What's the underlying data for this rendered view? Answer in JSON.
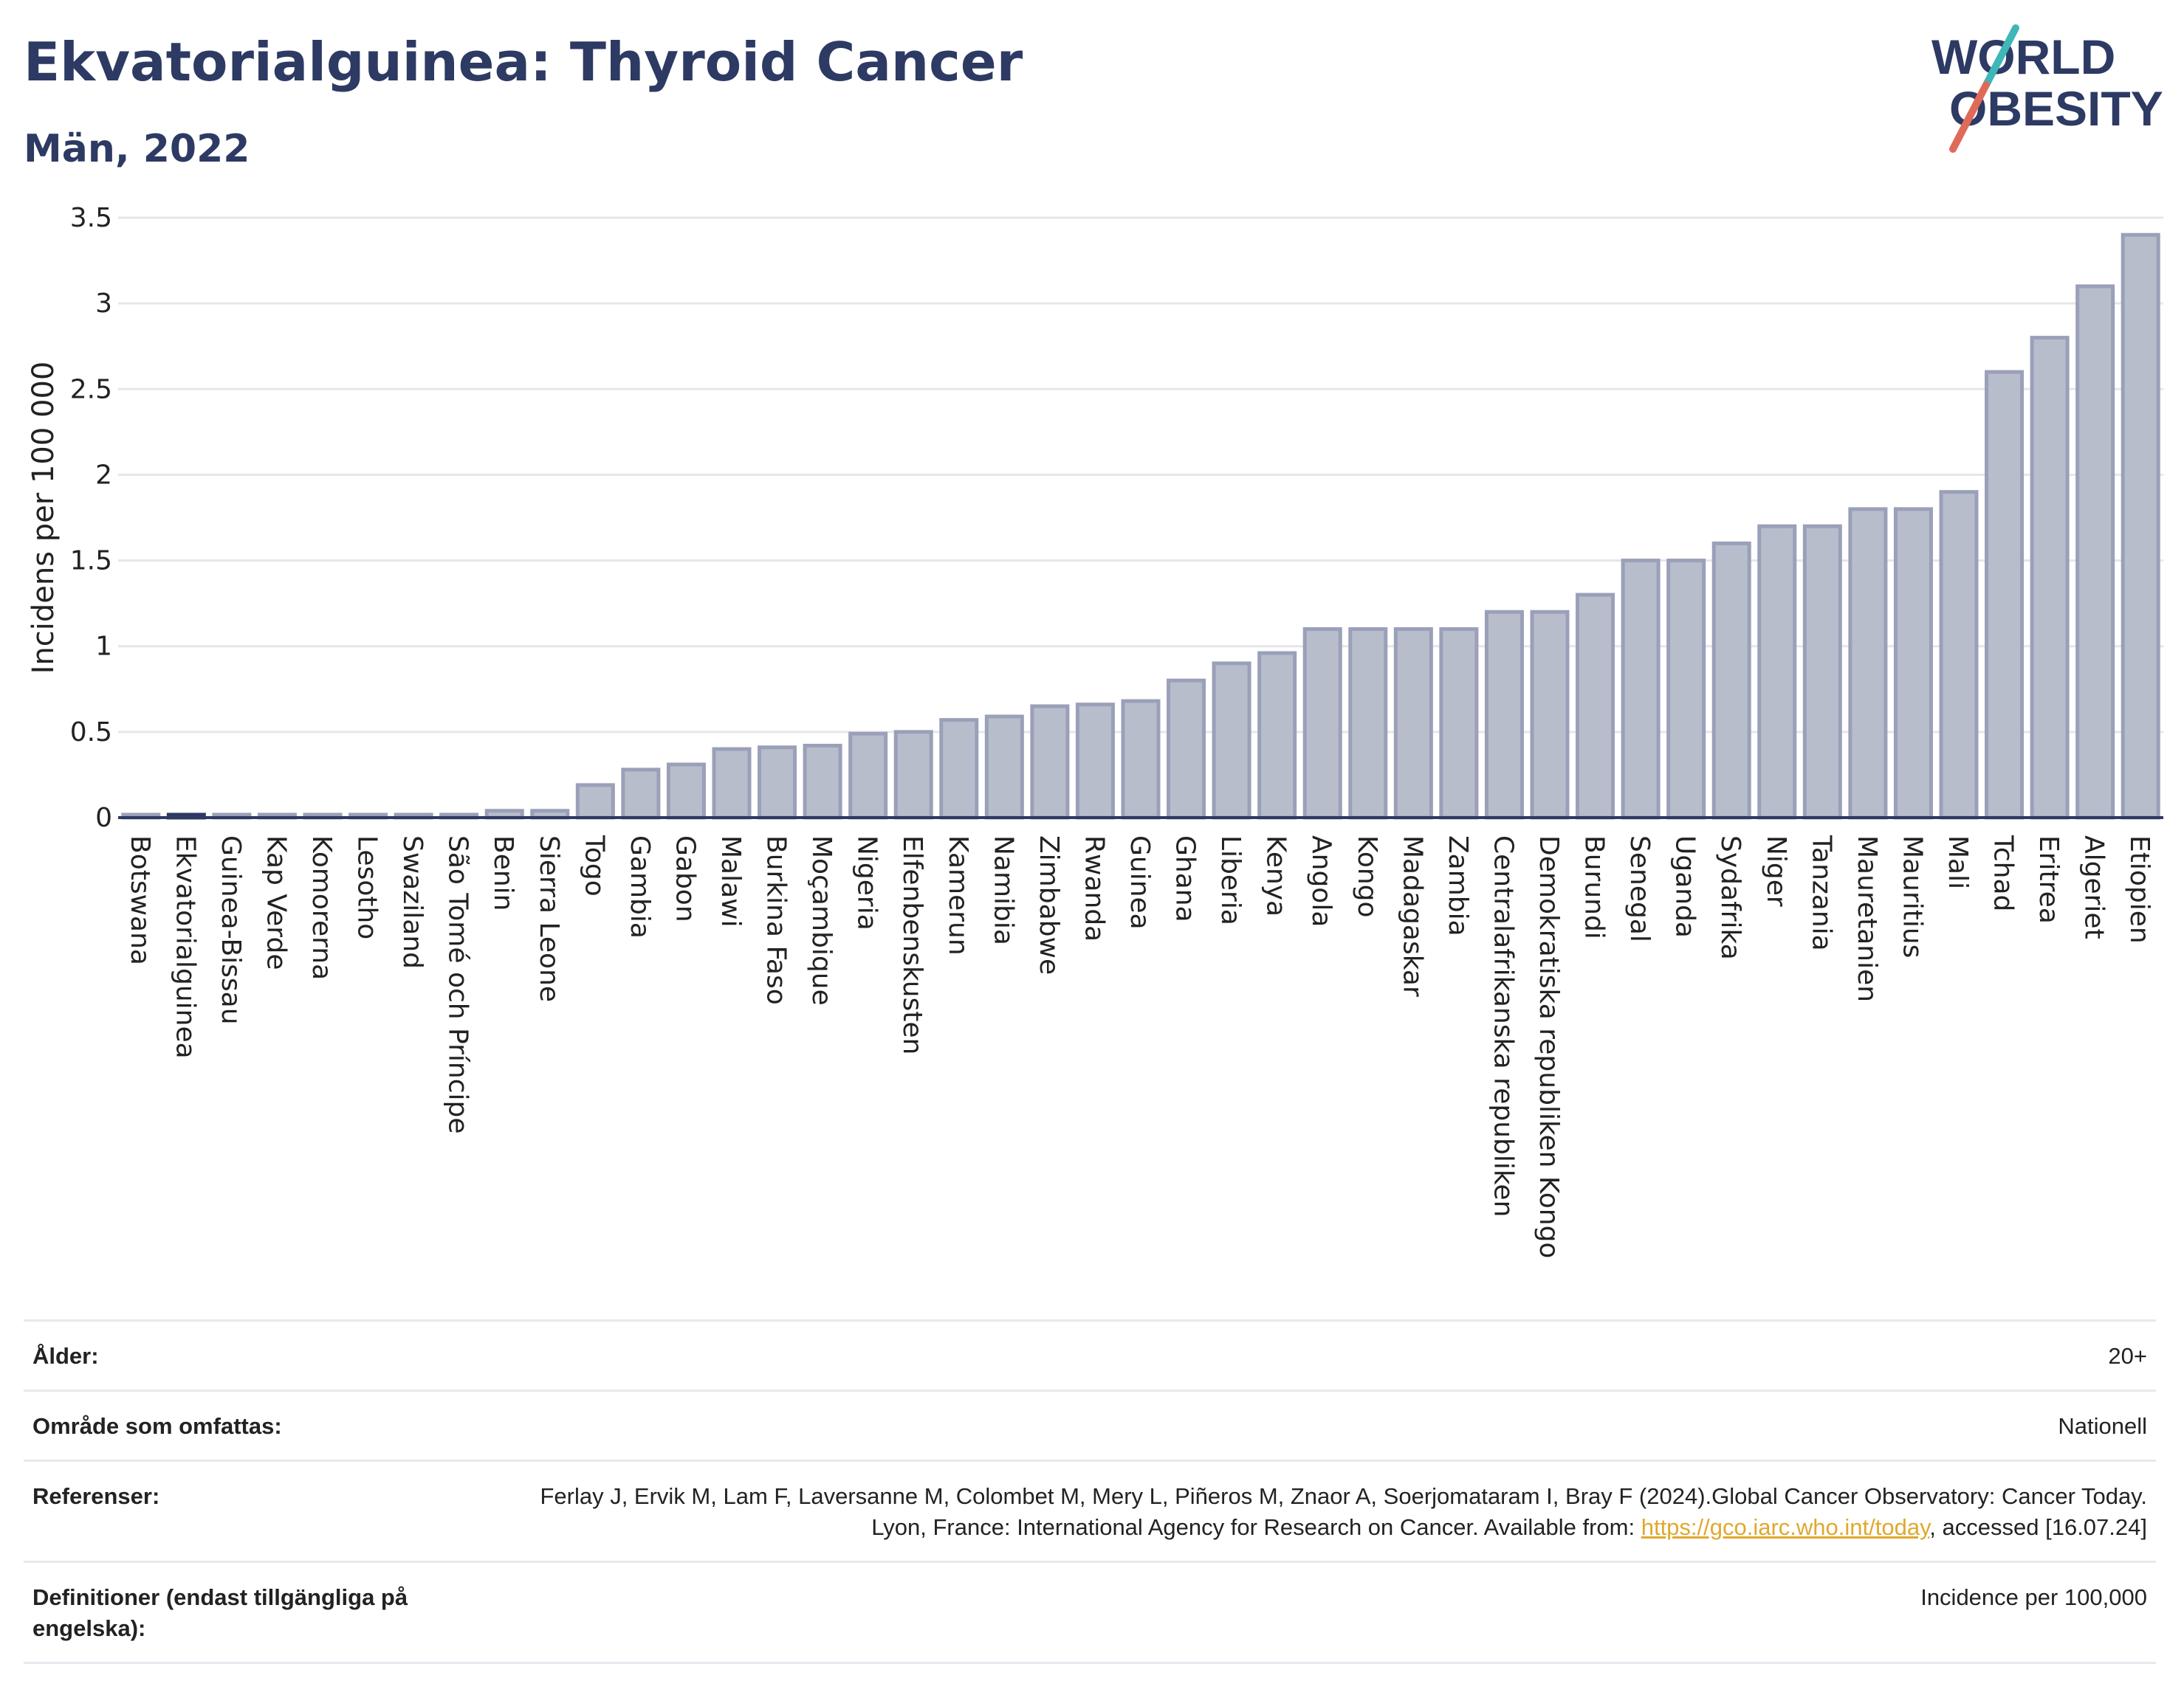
{
  "header": {
    "title": "Ekvatorialguinea: Thyroid Cancer",
    "subtitle": "Män, 2022"
  },
  "logo": {
    "line1": "WORLD",
    "line2": "OBESITY",
    "accent_color": "#e06a5a",
    "accent_color2": "#3fb6b8",
    "text_color": "#2d3a63"
  },
  "chart_data": {
    "type": "bar",
    "ylabel": "Incidens per 100 000",
    "ylim": [
      0,
      3.5
    ],
    "yticks": [
      0,
      0.5,
      1,
      1.5,
      2,
      2.5,
      3,
      3.5
    ],
    "ytick_labels": [
      "0",
      "0.5",
      "1",
      "1.5",
      "2",
      "2.5",
      "3",
      "3.5"
    ],
    "grid": true,
    "highlight": "Ekvatorialguinea",
    "bar_color": "#b8bdcc",
    "bar_border_color": "#9aa0b8",
    "highlight_color": "#2d3a63",
    "categories": [
      "Botswana",
      "Ekvatorialguinea",
      "Guinea-Bissau",
      "Kap Verde",
      "Komorerna",
      "Lesotho",
      "Swaziland",
      "São Tomé och Príncipe",
      "Benin",
      "Sierra Leone",
      "Togo",
      "Gambia",
      "Gabon",
      "Malawi",
      "Burkina Faso",
      "Moçambique",
      "Nigeria",
      "Elfenbenskusten",
      "Kamerun",
      "Namibia",
      "Zimbabwe",
      "Rwanda",
      "Guinea",
      "Ghana",
      "Liberia",
      "Kenya",
      "Angola",
      "Kongo",
      "Madagaskar",
      "Zambia",
      "Centralafrikanska republiken",
      "Demokratiska republiken Kongo",
      "Burundi",
      "Senegal",
      "Uganda",
      "Sydafrika",
      "Niger",
      "Tanzania",
      "Mauretanien",
      "Mauritius",
      "Mali",
      "Tchad",
      "Eritrea",
      "Algeriet",
      "Etiopien"
    ],
    "values": [
      0.01,
      0.01,
      0.01,
      0.01,
      0.01,
      0.01,
      0.01,
      0.01,
      0.04,
      0.04,
      0.19,
      0.28,
      0.31,
      0.4,
      0.41,
      0.42,
      0.49,
      0.5,
      0.57,
      0.59,
      0.65,
      0.66,
      0.68,
      0.8,
      0.9,
      0.96,
      1.1,
      1.1,
      1.1,
      1.1,
      1.2,
      1.2,
      1.3,
      1.5,
      1.5,
      1.6,
      1.7,
      1.7,
      1.8,
      1.8,
      1.9,
      2.6,
      2.8,
      3.1,
      3.4
    ]
  },
  "meta": {
    "rows": [
      {
        "label": "Ålder:",
        "value": "20+"
      },
      {
        "label": "Område som omfattas:",
        "value": "Nationell"
      },
      {
        "label": "Referenser:",
        "value_pre": "Ferlay J, Ervik M, Lam F, Laversanne M, Colombet M, Mery L, Piñeros M, Znaor A, Soerjomataram I, Bray F (2024).Global Cancer Observatory: Cancer Today. Lyon, France: International Agency for Research on Cancer. Available from: ",
        "link": "https://gco.iarc.who.int/today",
        "value_post": ", accessed [16.07.24]"
      },
      {
        "label": "Definitioner (endast tillgängliga på engelska):",
        "value": "Incidence per 100,000"
      }
    ]
  }
}
